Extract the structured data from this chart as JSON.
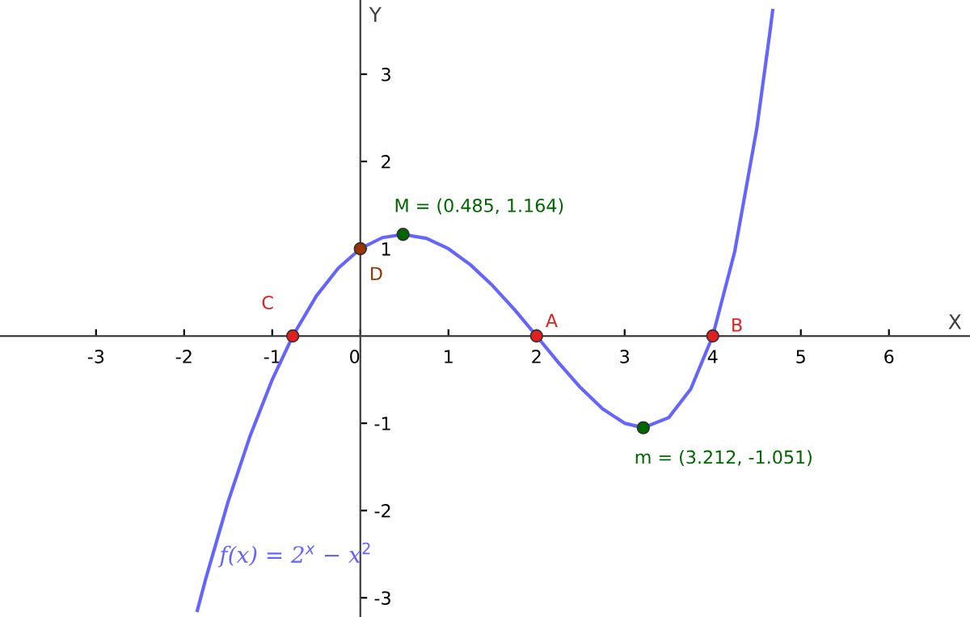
{
  "chart_data": {
    "type": "line",
    "xlabel": "X",
    "ylabel": "Y",
    "xlim": [
      -4.09,
      6.92
    ],
    "ylim": [
      -3.22,
      3.85
    ],
    "xticks": [
      -3,
      -2,
      -1,
      0,
      1,
      2,
      3,
      4,
      5,
      6
    ],
    "yticks": [
      -3,
      -2,
      -1,
      1,
      2,
      3
    ],
    "grid": false,
    "legend": false,
    "series": [
      {
        "name": "f(x) = 2$^{x}$ − x$^{2}$",
        "color": "#6464ff",
        "x": [
          -1.85,
          -1.75,
          -1.5,
          -1.25,
          -1.0,
          -0.767,
          -0.5,
          -0.25,
          0,
          0.25,
          0.485,
          0.75,
          1.0,
          1.25,
          1.5,
          1.75,
          2.0,
          2.25,
          2.5,
          2.75,
          3.0,
          3.212,
          3.5,
          3.75,
          4.0,
          4.25,
          4.5,
          4.65,
          4.68
        ],
        "values": [
          -3.145,
          -2.765,
          -1.896,
          -1.142,
          -0.5,
          0,
          0.457,
          0.778,
          1,
          1.127,
          1.164,
          1.119,
          1,
          0.816,
          0.578,
          0.302,
          0,
          -0.306,
          -0.593,
          -0.835,
          -1,
          -1.051,
          -0.936,
          -0.608,
          0,
          0.97,
          2.377,
          3.49,
          3.73
        ],
        "marker": "none"
      },
      {
        "type": "scatter",
        "x": [
          -0.767,
          0,
          0.485,
          2,
          3.212,
          4
        ],
        "values": [
          0,
          1,
          1.164,
          0,
          -1.051,
          0
        ],
        "colors": [
          "#e02020",
          "#993300",
          "#006600",
          "#e02020",
          "#006600",
          "#e02020"
        ],
        "marker": "circle"
      }
    ],
    "annotations": [
      {
        "text": "C",
        "x": -0.767,
        "y": 0
      },
      {
        "text": "D",
        "x": 0,
        "y": 1
      },
      {
        "text": "M = (0.485, 1.164)",
        "x": 0.485,
        "y": 1.164
      },
      {
        "text": "A",
        "x": 2,
        "y": 0
      },
      {
        "text": "m = (3.212, -1.051)",
        "x": 3.212,
        "y": -1.051
      },
      {
        "text": "B",
        "x": 4,
        "y": 0
      }
    ]
  }
}
